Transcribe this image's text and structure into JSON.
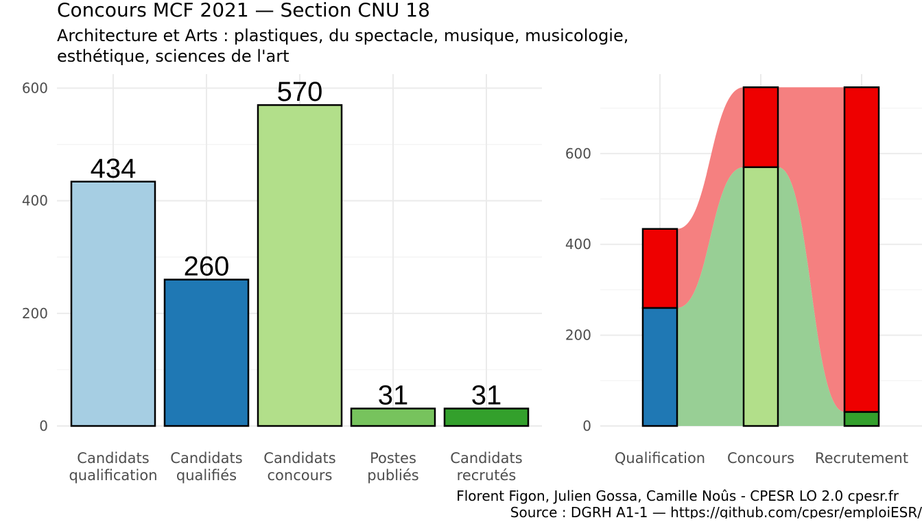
{
  "title": "Concours MCF  2021  —  Section CNU 18",
  "subtitle_line1": "Architecture et Arts : plastiques, du spectacle, musique, musicologie,",
  "subtitle_line2": "esthétique, sciences de l'art",
  "caption_line1": "Florent Figon, Julien Gossa, Camille Noûs - CPESR LO 2.0 cpesr.fr",
  "caption_line2": "Source : DGRH A1-1 — https://github.com/cpesr/emploiESR/",
  "chart_data": [
    {
      "type": "bar",
      "categories": [
        [
          "Candidats",
          "qualification"
        ],
        [
          "Candidats",
          "qualifiés"
        ],
        [
          "Candidats",
          "concours"
        ],
        [
          "Postes",
          "publiés"
        ],
        [
          "Candidats",
          "recrutés"
        ]
      ],
      "values": [
        434,
        260,
        570,
        31,
        31
      ],
      "data_labels": [
        "434",
        "260",
        "570",
        "31",
        "31"
      ],
      "colors": [
        "#a6cee3",
        "#1f78b4",
        "#b2df8a",
        "#77c35d",
        "#33a02c"
      ],
      "ylim": [
        0,
        600
      ],
      "yticks": [
        0,
        200,
        400,
        600
      ],
      "grid": true
    },
    {
      "type": "bar",
      "stacked": true,
      "categories": [
        "Qualification",
        "Concours",
        "Recrutement"
      ],
      "series": [
        {
          "values": [
            260,
            570,
            31
          ],
          "colors": [
            "#1f78b4",
            "#b2df8a",
            "#33a02c"
          ]
        },
        {
          "values": [
            174,
            176,
            715
          ],
          "colors": [
            "#ee0000",
            "#ee0000",
            "#ee0000"
          ]
        }
      ],
      "flow_colors": {
        "lower": "#98cf95",
        "upper": "#f58080"
      },
      "ylim": [
        0,
        746
      ],
      "yticks": [
        0,
        200,
        400,
        600
      ],
      "grid": true
    }
  ]
}
